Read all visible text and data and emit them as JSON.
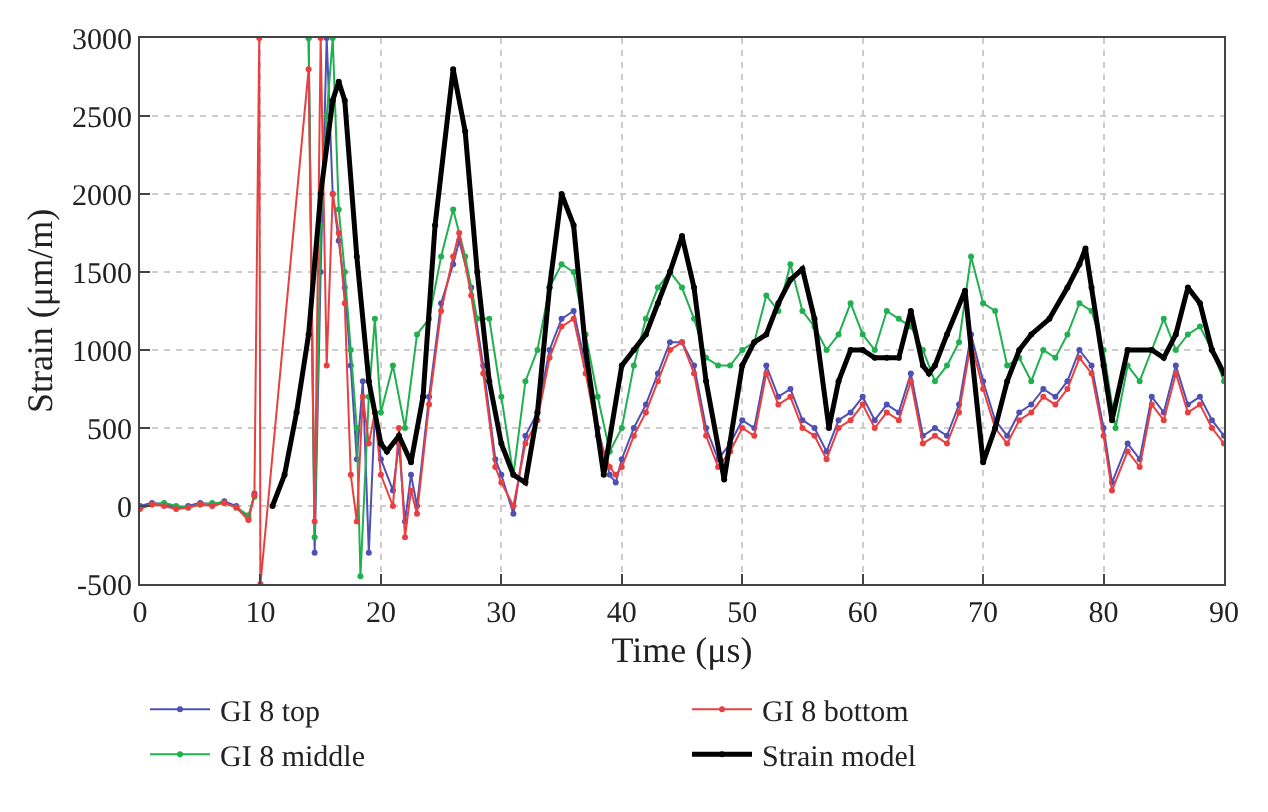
{
  "chart_data": {
    "type": "line",
    "xlabel": "Time (μs)",
    "ylabel": "Strain (μm/m)",
    "xlim": [
      0,
      90
    ],
    "ylim": [
      -500,
      3000
    ],
    "xticks": [
      0,
      10,
      20,
      30,
      40,
      50,
      60,
      70,
      80,
      90
    ],
    "yticks": [
      -500,
      0,
      500,
      1000,
      1500,
      2000,
      2500,
      3000
    ],
    "grid": true,
    "legend": "bottom",
    "marker": "circle",
    "line_style": "solid",
    "series": [
      {
        "name": "GI 8 top",
        "color": "#5050b4",
        "x": [
          0,
          1,
          2,
          3,
          4,
          5,
          6,
          7,
          8,
          9,
          9.5,
          10,
          14,
          14.5,
          15,
          15.5,
          16,
          16.5,
          17,
          17.5,
          18,
          18.5,
          19,
          19.5,
          20,
          21,
          21.5,
          22,
          22.5,
          23,
          24,
          25,
          26,
          26.5,
          27.5,
          28.5,
          29.5,
          30,
          31,
          32,
          33,
          34,
          35,
          36,
          37,
          38,
          39,
          39.5,
          40,
          41,
          42,
          43,
          44,
          45,
          46,
          47,
          48,
          49,
          50,
          51,
          52,
          53,
          54,
          55,
          56,
          57,
          58,
          59,
          60,
          61,
          62,
          63,
          64,
          65,
          66,
          67,
          68,
          69,
          70,
          71,
          72,
          73,
          74,
          75,
          76,
          77,
          78,
          79,
          80,
          80.7,
          82,
          83,
          84,
          85,
          86,
          87,
          88,
          89,
          90
        ],
        "values": [
          0,
          20,
          10,
          -10,
          0,
          20,
          10,
          30,
          0,
          -80,
          80,
          null,
          3000,
          -300,
          1500,
          3000,
          2000,
          1700,
          1400,
          900,
          300,
          800,
          -300,
          600,
          300,
          100,
          400,
          -100,
          200,
          0,
          700,
          1300,
          1550,
          1700,
          1400,
          900,
          300,
          200,
          -50,
          450,
          600,
          1000,
          1200,
          1250,
          900,
          500,
          200,
          150,
          300,
          500,
          650,
          850,
          1050,
          1050,
          900,
          500,
          300,
          400,
          550,
          500,
          900,
          700,
          750,
          550,
          500,
          350,
          550,
          600,
          700,
          550,
          650,
          600,
          850,
          450,
          500,
          450,
          650,
          1100,
          800,
          550,
          450,
          600,
          650,
          750,
          700,
          800,
          1000,
          900,
          500,
          150,
          400,
          300,
          700,
          600,
          900,
          650,
          700,
          550,
          450
        ]
      },
      {
        "name": "GI 8 middle",
        "color": "#20b050",
        "x": [
          0,
          1,
          2,
          3,
          4,
          5,
          6,
          7,
          8,
          9,
          9.5,
          10,
          14,
          14.5,
          15,
          15.5,
          16,
          16.5,
          17,
          17.5,
          18,
          18.3,
          19,
          19.5,
          20,
          21,
          22,
          23,
          24,
          25,
          26,
          27,
          28,
          29,
          30,
          31,
          32,
          33,
          34,
          35,
          36,
          37,
          38,
          39,
          40,
          41,
          42,
          43,
          44,
          45,
          46,
          47,
          48,
          49,
          50,
          51,
          52,
          53,
          54,
          55,
          56,
          57,
          58,
          59,
          60,
          61,
          62,
          63,
          64,
          65,
          66,
          67,
          68,
          69,
          70,
          71,
          72,
          73,
          74,
          75,
          76,
          77,
          78,
          79,
          80,
          81,
          82,
          83,
          84,
          85,
          86,
          87,
          88,
          89,
          90
        ],
        "values": [
          -10,
          10,
          20,
          0,
          -10,
          10,
          20,
          20,
          -10,
          -60,
          60,
          null,
          3000,
          -200,
          1800,
          2500,
          3000,
          1900,
          1500,
          1000,
          500,
          -450,
          700,
          1200,
          600,
          900,
          500,
          1100,
          1200,
          1600,
          1900,
          1600,
          1200,
          1200,
          700,
          200,
          800,
          1000,
          1400,
          1550,
          1500,
          1100,
          700,
          350,
          500,
          900,
          1200,
          1400,
          1500,
          1400,
          1200,
          950,
          900,
          900,
          1000,
          1050,
          1350,
          1250,
          1550,
          1250,
          1150,
          1000,
          1100,
          1300,
          1100,
          1000,
          1250,
          1200,
          1150,
          1000,
          800,
          900,
          1050,
          1600,
          1300,
          1250,
          900,
          950,
          800,
          1000,
          950,
          1100,
          1300,
          1250,
          1000,
          500,
          900,
          800,
          1000,
          1200,
          1000,
          1100,
          1150,
          1000,
          800
        ]
      },
      {
        "name": "GI 8 bottom",
        "color": "#e84040",
        "x": [
          0,
          1,
          2,
          3,
          4,
          5,
          6,
          7,
          8,
          9,
          9.5,
          9.9,
          10,
          14,
          14.5,
          15,
          15.5,
          16,
          16.5,
          17,
          17.5,
          18,
          18.5,
          19,
          19.5,
          20,
          21,
          21.5,
          22,
          22.5,
          23,
          24,
          25,
          26,
          26.5,
          27.5,
          28.5,
          29.5,
          30,
          31,
          32,
          33,
          34,
          35,
          36,
          37,
          38,
          39,
          39.5,
          40,
          41,
          42,
          43,
          44,
          45,
          46,
          47,
          48,
          49,
          50,
          51,
          52,
          53,
          54,
          55,
          56,
          57,
          58,
          59,
          60,
          61,
          62,
          63,
          64,
          65,
          66,
          67,
          68,
          69,
          70,
          71,
          72,
          73,
          74,
          75,
          76,
          77,
          78,
          79,
          80,
          80.7,
          82,
          83,
          84,
          85,
          86,
          87,
          88,
          89,
          90
        ],
        "values": [
          -20,
          10,
          0,
          -20,
          -10,
          10,
          0,
          20,
          -10,
          -90,
          70,
          3000,
          -500,
          2800,
          -100,
          3000,
          900,
          2000,
          1750,
          1300,
          200,
          -100,
          700,
          400,
          600,
          200,
          0,
          500,
          -200,
          100,
          -50,
          650,
          1250,
          1600,
          1750,
          1350,
          850,
          250,
          150,
          0,
          400,
          550,
          950,
          1150,
          1200,
          850,
          450,
          250,
          200,
          250,
          450,
          600,
          800,
          1000,
          1050,
          850,
          450,
          250,
          350,
          500,
          450,
          850,
          650,
          700,
          500,
          450,
          300,
          500,
          550,
          650,
          500,
          600,
          550,
          800,
          400,
          450,
          400,
          600,
          1050,
          750,
          500,
          400,
          550,
          600,
          700,
          650,
          750,
          950,
          850,
          450,
          100,
          350,
          250,
          650,
          550,
          850,
          600,
          650,
          500,
          400
        ]
      },
      {
        "name": "Strain model",
        "color": "#000000",
        "x": [
          11,
          12,
          13,
          14,
          15,
          16,
          16.5,
          17,
          18,
          19,
          20,
          20.5,
          21.5,
          22.5,
          23.5,
          24.5,
          26,
          27,
          28,
          29,
          30,
          31,
          32,
          33,
          34,
          35,
          36,
          37,
          38.5,
          40,
          41,
          42,
          43,
          44,
          45,
          46,
          47,
          48.5,
          50,
          51,
          52,
          53,
          54,
          55,
          56,
          57.2,
          58,
          59,
          60,
          61,
          62,
          63,
          64,
          65,
          65.5,
          66,
          67,
          68.5,
          70,
          71,
          72,
          73,
          74,
          75.5,
          77,
          78,
          78.5,
          79,
          80,
          80.7,
          82,
          84,
          85,
          86,
          87,
          88,
          89,
          90
        ],
        "values": [
          0,
          200,
          600,
          1100,
          2000,
          2600,
          2720,
          2600,
          1600,
          800,
          400,
          350,
          450,
          280,
          700,
          1800,
          2800,
          2400,
          1500,
          800,
          400,
          200,
          150,
          600,
          1400,
          2000,
          1800,
          1000,
          200,
          900,
          1000,
          1100,
          1300,
          1500,
          1730,
          1400,
          800,
          170,
          900,
          1050,
          1100,
          1300,
          1450,
          1520,
          1200,
          500,
          800,
          1000,
          1000,
          950,
          950,
          950,
          1250,
          900,
          850,
          900,
          1100,
          1380,
          280,
          500,
          800,
          1000,
          1100,
          1200,
          1400,
          1550,
          1650,
          1400,
          900,
          550,
          1000,
          1000,
          950,
          1100,
          1400,
          1300,
          1000,
          850
        ]
      }
    ]
  }
}
